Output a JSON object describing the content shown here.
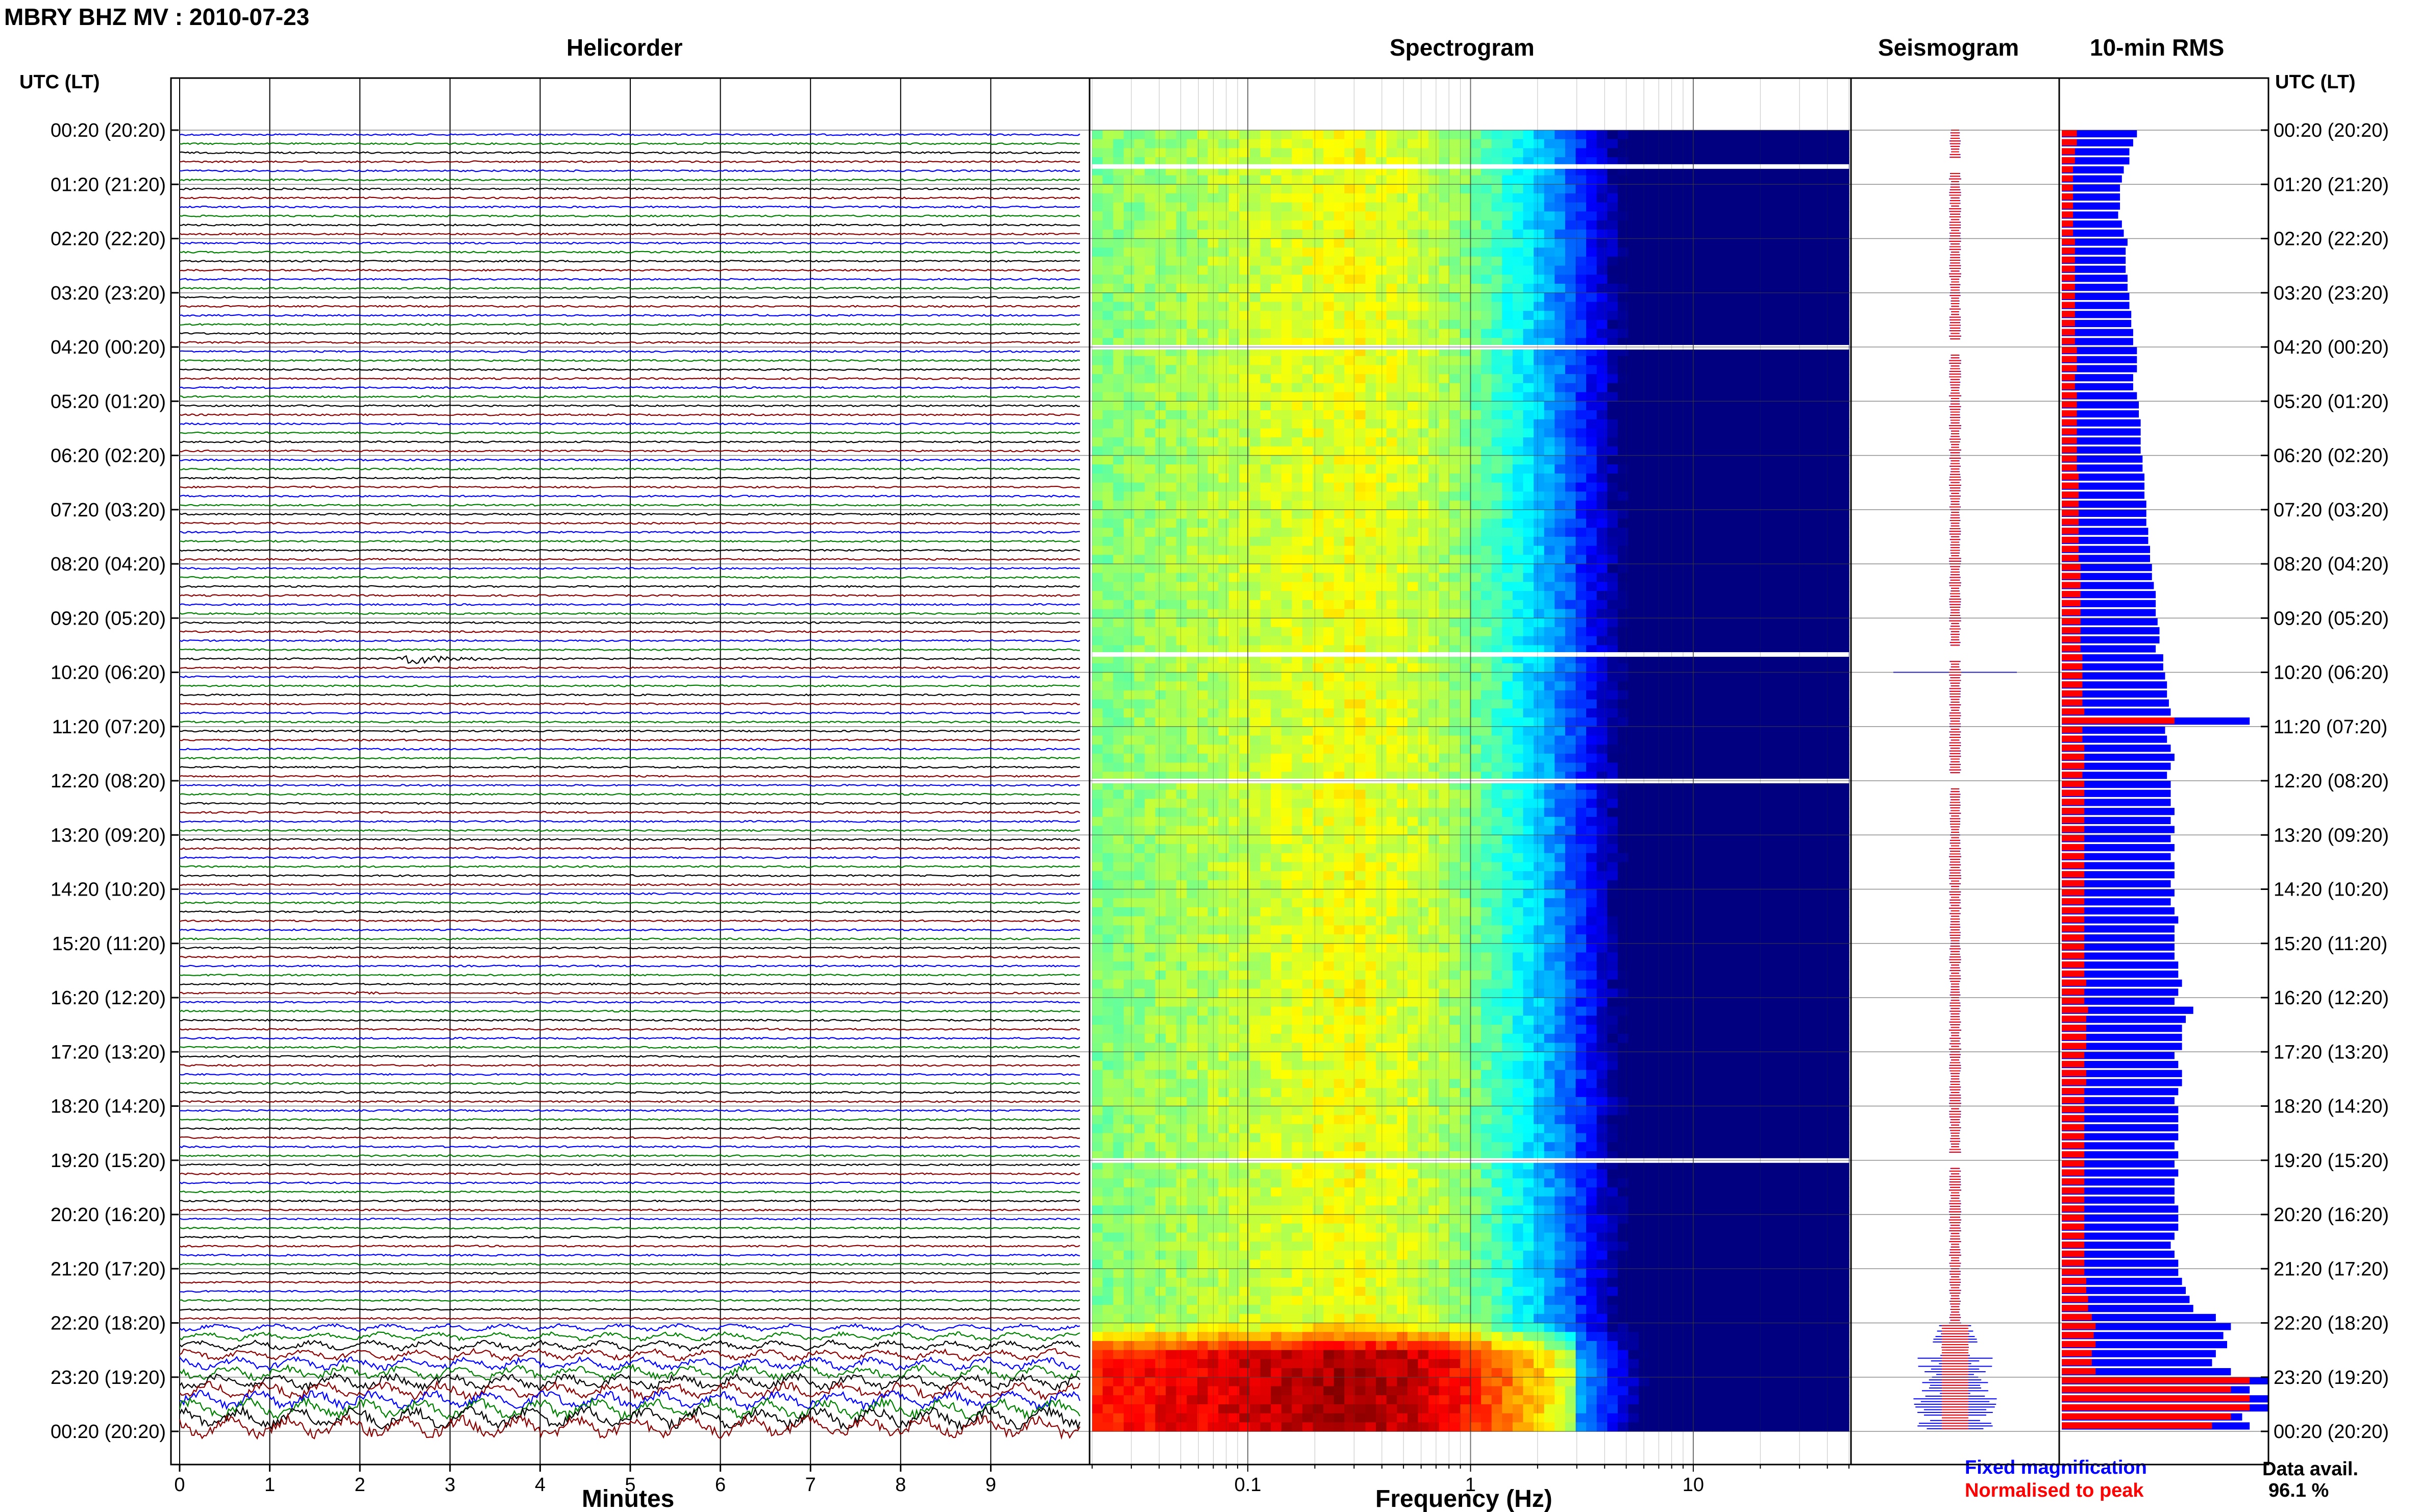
{
  "header": {
    "station_title": "MBRY BHZ MV : 2010-07-23",
    "time_axis_title": "UTC (LT)",
    "panel_titles": [
      "Helicorder",
      "Spectrogram",
      "Seismogram",
      "10-min RMS"
    ]
  },
  "footer": {
    "helicorder_xlabel": "Minutes",
    "spectrogram_xlabel": "Frequency (Hz)",
    "legend_fixed": "Fixed magnification",
    "legend_normalised": "Normalised to peak",
    "data_avail_label": "Data avail.",
    "data_avail_value": "96.1 %"
  },
  "colors": {
    "trace_cycle": [
      "#0000ff",
      "#008000",
      "#000000",
      "#8b0000"
    ],
    "fixed_magnification": "#0000ff",
    "normalised_to_peak": "#ff0000",
    "gap": "#ffffff"
  },
  "chart_data": [
    {
      "type": "line",
      "title": "Helicorder",
      "xlabel": "Minutes",
      "xlim": [
        0,
        10
      ],
      "xticks": [
        "0",
        "1",
        "2",
        "3",
        "4",
        "5",
        "6",
        "7",
        "8",
        "9"
      ],
      "row_duration_minutes": 10,
      "row_count": 144,
      "time_labels": [
        "00:20 (20:20)",
        "01:20 (21:20)",
        "02:20 (22:20)",
        "03:20 (23:20)",
        "04:20 (00:20)",
        "05:20 (01:20)",
        "06:20 (02:20)",
        "07:20 (03:20)",
        "08:20 (04:20)",
        "09:20 (05:20)",
        "10:20 (06:20)",
        "11:20 (07:20)",
        "12:20 (08:20)",
        "13:20 (09:20)",
        "14:20 (10:20)",
        "15:20 (11:20)",
        "16:20 (12:20)",
        "17:20 (13:20)",
        "18:20 (14:20)",
        "19:20 (15:20)",
        "20:20 (16:20)",
        "21:20 (17:20)",
        "22:20 (18:20)",
        "23:20 (19:20)",
        "00:20 (20:20)"
      ],
      "events": [
        {
          "time": "10:10",
          "minute_start": 2.4,
          "duration_minutes": 1.3,
          "relative_amplitude": 9
        },
        {
          "time": "16:20",
          "minute_start": 1.9,
          "duration_minutes": 1.6,
          "relative_amplitude": 2
        },
        {
          "time": "21:50",
          "minute_start": 4.0,
          "duration_minutes": 0.4,
          "relative_amplitude": 2
        }
      ],
      "high_noise_from": "22:20"
    },
    {
      "type": "heatmap",
      "title": "Spectrogram",
      "xlabel": "Frequency (Hz)",
      "x_scale": "log",
      "xlim": [
        0.02,
        50
      ],
      "xticks": [
        0.1,
        1,
        10
      ],
      "colormap": "jet",
      "peak_frequency_range_hz": [
        0.25,
        0.45
      ],
      "gaps_utc": [
        "01:00",
        "04:20",
        "10:00",
        "12:20",
        "19:20"
      ],
      "high_energy_from": "22:20"
    },
    {
      "type": "line",
      "title": "Seismogram",
      "series": [
        {
          "name": "Fixed magnification",
          "color": "#0000ff"
        },
        {
          "name": "Normalised to peak",
          "color": "#ff0000"
        }
      ]
    },
    {
      "type": "bar",
      "title": "10-min RMS",
      "orientation": "horizontal",
      "bin_minutes": 10,
      "series_names": [
        "Fixed magnification",
        "Normalised to peak"
      ],
      "fixed_magnification": [
        40,
        38,
        36,
        36,
        33,
        32,
        31,
        31,
        31,
        30,
        32,
        33,
        35,
        34,
        34,
        34,
        35,
        35,
        36,
        36,
        37,
        37,
        38,
        38,
        40,
        40,
        40,
        38,
        38,
        40,
        41,
        41,
        42,
        42,
        42,
        42,
        43,
        43,
        44,
        44,
        44,
        45,
        45,
        45,
        46,
        46,
        47,
        47,
        48,
        48,
        49,
        50,
        50,
        50,
        51,
        52,
        52,
        50,
        54,
        54,
        55,
        56,
        56,
        57,
        58,
        100,
        55,
        56,
        58,
        60,
        58,
        56,
        58,
        58,
        58,
        60,
        58,
        60,
        58,
        60,
        58,
        60,
        60,
        58,
        60,
        58,
        60,
        62,
        60,
        60,
        60,
        60,
        62,
        62,
        64,
        62,
        60,
        70,
        66,
        64,
        64,
        64,
        60,
        62,
        64,
        64,
        62,
        60,
        62,
        62,
        62,
        62,
        60,
        62,
        60,
        62,
        60,
        60,
        60,
        62,
        62,
        62,
        60,
        58,
        60,
        62,
        62,
        64,
        66,
        68,
        70,
        82,
        90,
        86,
        88,
        82,
        80,
        90,
        110,
        100,
        110,
        110,
        96,
        100
      ],
      "normalised_to_peak": [
        8,
        8,
        7,
        7,
        6,
        6,
        6,
        6,
        6,
        6,
        6,
        6,
        7,
        7,
        7,
        7,
        7,
        7,
        7,
        7,
        7,
        7,
        7,
        7,
        8,
        8,
        8,
        7,
        7,
        8,
        8,
        8,
        8,
        8,
        8,
        8,
        8,
        8,
        9,
        9,
        9,
        9,
        9,
        9,
        9,
        9,
        9,
        9,
        10,
        10,
        10,
        10,
        10,
        10,
        10,
        10,
        10,
        10,
        11,
        11,
        11,
        11,
        11,
        11,
        12,
        60,
        11,
        11,
        12,
        12,
        12,
        11,
        12,
        12,
        12,
        12,
        12,
        12,
        12,
        12,
        12,
        12,
        12,
        12,
        12,
        12,
        12,
        12,
        12,
        12,
        12,
        12,
        12,
        12,
        13,
        12,
        12,
        14,
        13,
        13,
        13,
        13,
        12,
        12,
        13,
        13,
        12,
        12,
        12,
        12,
        12,
        12,
        12,
        12,
        12,
        12,
        12,
        12,
        12,
        12,
        12,
        12,
        12,
        12,
        12,
        12,
        12,
        13,
        13,
        14,
        14,
        16,
        18,
        17,
        18,
        16,
        16,
        18,
        100,
        90,
        100,
        100,
        90,
        80
      ]
    }
  ]
}
